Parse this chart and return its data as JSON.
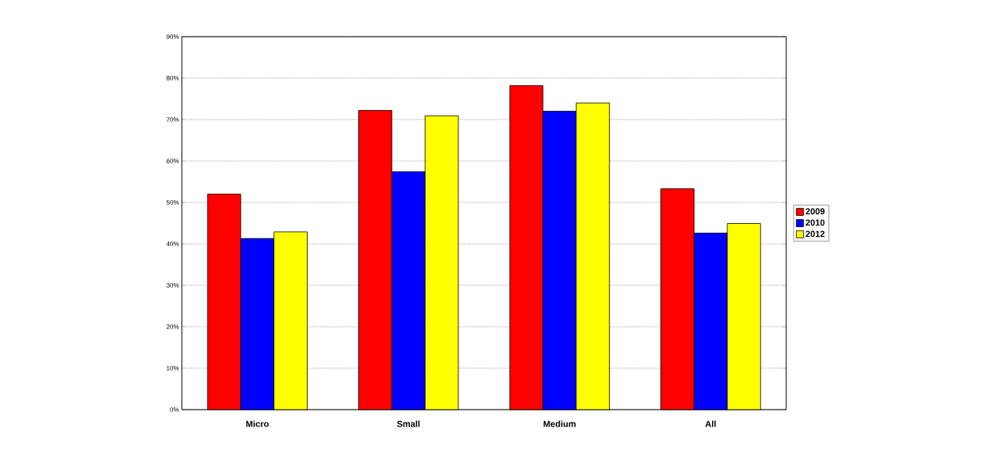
{
  "chart_data": {
    "type": "bar",
    "categories": [
      "Micro",
      "Small",
      "Medium",
      "All"
    ],
    "series": [
      {
        "name": "2009",
        "color": "#ff0000",
        "values": [
          52,
          72.2,
          78.2,
          53.3
        ]
      },
      {
        "name": "2010",
        "color": "#0000ff",
        "values": [
          41.3,
          57.4,
          72.0,
          42.6
        ]
      },
      {
        "name": "2012",
        "color": "#ffff00",
        "values": [
          42.9,
          70.9,
          74.0,
          44.9
        ]
      }
    ],
    "ylim": [
      0,
      90
    ],
    "yticks": [
      {
        "value": 0,
        "label": "0%"
      },
      {
        "value": 10,
        "label": "10%"
      },
      {
        "value": 20,
        "label": "20%"
      },
      {
        "value": 30,
        "label": "30%"
      },
      {
        "value": 40,
        "label": "40%"
      },
      {
        "value": 50,
        "label": "50%"
      },
      {
        "value": 60,
        "label": "60%"
      },
      {
        "value": 70,
        "label": "70%"
      },
      {
        "value": 80,
        "label": "80%"
      },
      {
        "value": 90,
        "label": "90%"
      }
    ],
    "grid": "y",
    "legend": "right"
  }
}
